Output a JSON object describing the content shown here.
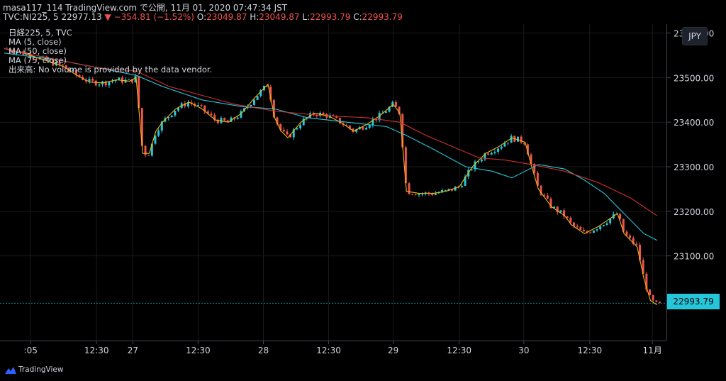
{
  "header": {
    "line1": "masa117_114 TradingView.com で公開, 11月 01, 2020 07:47:34 JST",
    "line2_prefix": "TVC:NI225, 5  22977.13",
    "line2_change": "▼ −354.81 (−1.52%)",
    "o_label": "O:",
    "o_value": "23049.87",
    "h_label": "H:",
    "h_value": "23049.87",
    "l_label": "L:",
    "l_value": "22993.79",
    "c_label": "C:",
    "c_value": "22993.79"
  },
  "legend": {
    "symbol": "日経225, 5, TVC",
    "ma5": "MA (5, close)",
    "ma50": "MA (50, close)",
    "ma75": "MA (75, close)",
    "volume_note": "出来高: No volume is provided by the data vendor."
  },
  "currency": "JPY",
  "last_price_tag": "22993.79",
  "footer": {
    "brand": "TradingView"
  },
  "colors": {
    "up": "#26c6da",
    "down": "#ef5350",
    "ma5": "#f0b90b",
    "ma50": "#26c6da",
    "ma75": "#d32f2f",
    "grid": "#1a1a1a",
    "background": "#000000"
  },
  "chart_data": {
    "type": "line",
    "title": "",
    "xlabel": "",
    "ylabel": "",
    "ylim": [
      22910,
      23620
    ],
    "y_ticks": [
      "23600.00",
      "23500.00",
      "23400.00",
      "23300.00",
      "23200.00",
      "23100.00"
    ],
    "x_ticks": [
      ":05",
      "12:30",
      "27",
      "12:30",
      "28",
      "12:30",
      "29",
      "12:30",
      "30",
      "12:30",
      "11月"
    ],
    "x_range": [
      0,
      100
    ],
    "series": [
      {
        "name": "MA (5, close)",
        "values": [
          [
            0,
            23565
          ],
          [
            3,
            23555
          ],
          [
            6,
            23540
          ],
          [
            9,
            23525
          ],
          [
            11,
            23505
          ],
          [
            13,
            23490
          ],
          [
            15,
            23488
          ],
          [
            17,
            23495
          ],
          [
            19,
            23492
          ],
          [
            20,
            23500
          ],
          [
            21,
            23330
          ],
          [
            22,
            23330
          ],
          [
            23,
            23380
          ],
          [
            24,
            23400
          ],
          [
            26,
            23430
          ],
          [
            28,
            23445
          ],
          [
            30,
            23430
          ],
          [
            32,
            23405
          ],
          [
            34,
            23400
          ],
          [
            36,
            23420
          ],
          [
            38,
            23455
          ],
          [
            40,
            23485
          ],
          [
            41,
            23410
          ],
          [
            42,
            23380
          ],
          [
            43,
            23365
          ],
          [
            45,
            23400
          ],
          [
            47,
            23420
          ],
          [
            49,
            23415
          ],
          [
            51,
            23400
          ],
          [
            53,
            23380
          ],
          [
            55,
            23395
          ],
          [
            57,
            23415
          ],
          [
            59,
            23440
          ],
          [
            60,
            23420
          ],
          [
            61,
            23245
          ],
          [
            63,
            23240
          ],
          [
            65,
            23240
          ],
          [
            67,
            23245
          ],
          [
            69,
            23255
          ],
          [
            71,
            23300
          ],
          [
            73,
            23330
          ],
          [
            75,
            23345
          ],
          [
            77,
            23365
          ],
          [
            79,
            23355
          ],
          [
            80,
            23300
          ],
          [
            81,
            23250
          ],
          [
            83,
            23210
          ],
          [
            85,
            23190
          ],
          [
            86,
            23170
          ],
          [
            88,
            23150
          ],
          [
            90,
            23165
          ],
          [
            92,
            23185
          ],
          [
            93,
            23195
          ],
          [
            94,
            23150
          ],
          [
            96,
            23120
          ],
          [
            97,
            23050
          ],
          [
            98,
            23000
          ],
          [
            99,
            22990
          ]
        ]
      },
      {
        "name": "MA (50, close)",
        "values": [
          [
            0,
            23555
          ],
          [
            8,
            23540
          ],
          [
            15,
            23520
          ],
          [
            20,
            23505
          ],
          [
            24,
            23480
          ],
          [
            30,
            23450
          ],
          [
            36,
            23435
          ],
          [
            41,
            23430
          ],
          [
            46,
            23410
          ],
          [
            52,
            23400
          ],
          [
            58,
            23390
          ],
          [
            61,
            23370
          ],
          [
            65,
            23340
          ],
          [
            70,
            23300
          ],
          [
            74,
            23290
          ],
          [
            77,
            23275
          ],
          [
            81,
            23305
          ],
          [
            85,
            23295
          ],
          [
            88,
            23270
          ],
          [
            91,
            23240
          ],
          [
            94,
            23195
          ],
          [
            97,
            23150
          ],
          [
            99,
            23135
          ]
        ]
      },
      {
        "name": "MA (75, close)",
        "values": [
          [
            0,
            23565
          ],
          [
            8,
            23540
          ],
          [
            15,
            23520
          ],
          [
            20,
            23515
          ],
          [
            25,
            23480
          ],
          [
            30,
            23460
          ],
          [
            35,
            23440
          ],
          [
            41,
            23425
          ],
          [
            48,
            23415
          ],
          [
            55,
            23410
          ],
          [
            60,
            23400
          ],
          [
            64,
            23370
          ],
          [
            68,
            23345
          ],
          [
            72,
            23320
          ],
          [
            76,
            23315
          ],
          [
            80,
            23305
          ],
          [
            85,
            23290
          ],
          [
            90,
            23265
          ],
          [
            95,
            23230
          ],
          [
            99,
            23190
          ]
        ]
      }
    ]
  }
}
